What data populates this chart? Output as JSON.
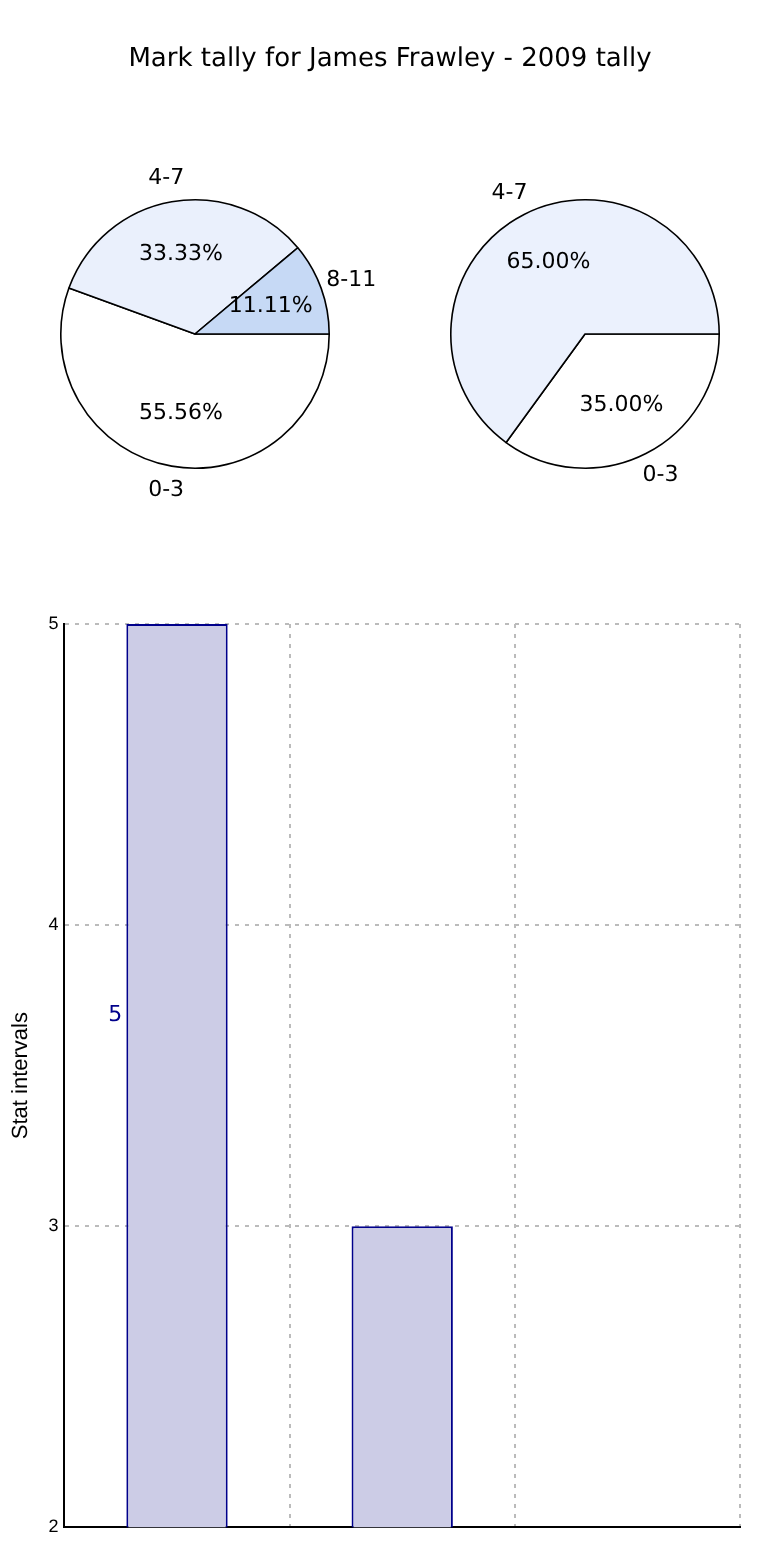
{
  "chart_data": [
    {
      "type": "pie",
      "title": "Mark tally for James Frawley - 2009 tally",
      "categories": [
        "0-3",
        "4-7",
        "8-11"
      ],
      "values": [
        55.56,
        33.33,
        11.11
      ],
      "colors": [
        "#ffffff",
        "#eaf0fc",
        "#c6d9f5"
      ],
      "value_labels": [
        "55.56%",
        "33.33%",
        "11.11%"
      ],
      "legend": false
    },
    {
      "type": "pie",
      "categories": [
        "0-3",
        "4-7"
      ],
      "values": [
        35,
        65
      ],
      "colors": [
        "#ffffff",
        "#ebf1fd"
      ],
      "value_labels": [
        "35.00%",
        "65.00%"
      ],
      "legend": false
    },
    {
      "type": "bar",
      "ylabel": "Stat intervals",
      "categories": [
        null,
        null,
        null
      ],
      "values": [
        5,
        3,
        null
      ],
      "color": "#cccce6",
      "value_labels": [
        "5",
        null,
        null
      ],
      "ylim": [
        2,
        5
      ],
      "yticks": [
        2,
        3,
        4,
        5
      ],
      "grid": true,
      "tick_labels": "y",
      "legend": false
    }
  ]
}
